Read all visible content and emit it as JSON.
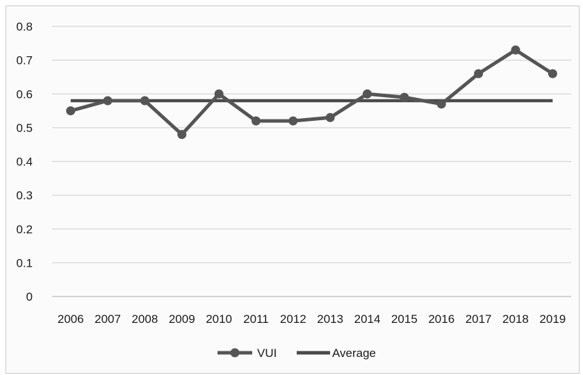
{
  "chart_data": {
    "type": "line",
    "title": "",
    "xlabel": "",
    "ylabel": "",
    "categories": [
      "2006",
      "2007",
      "2008",
      "2009",
      "2010",
      "2011",
      "2012",
      "2013",
      "2014",
      "2015",
      "2016",
      "2017",
      "2018",
      "2019"
    ],
    "ylim": [
      0,
      0.8
    ],
    "yticks": [
      0,
      0.1,
      0.2,
      0.3,
      0.4,
      0.5,
      0.6,
      0.7,
      0.8
    ],
    "ytick_labels": [
      "0",
      "0.1",
      "0.2",
      "0.3",
      "0.4",
      "0.5",
      "0.6",
      "0.7",
      "0.8"
    ],
    "grid": true,
    "legend_position": "bottom",
    "series": [
      {
        "name": "VUI",
        "values": [
          0.55,
          0.58,
          0.58,
          0.48,
          0.6,
          0.52,
          0.52,
          0.53,
          0.6,
          0.59,
          0.57,
          0.66,
          0.73,
          0.66
        ],
        "color": "#555555",
        "markers": true
      },
      {
        "name": "Average",
        "values": [
          0.58,
          0.58,
          0.58,
          0.58,
          0.58,
          0.58,
          0.58,
          0.58,
          0.58,
          0.58,
          0.58,
          0.58,
          0.58,
          0.58
        ],
        "color": "#4a4a4a",
        "markers": false
      }
    ],
    "legend": {
      "vui_label": "VUI",
      "average_label": "Average"
    }
  }
}
